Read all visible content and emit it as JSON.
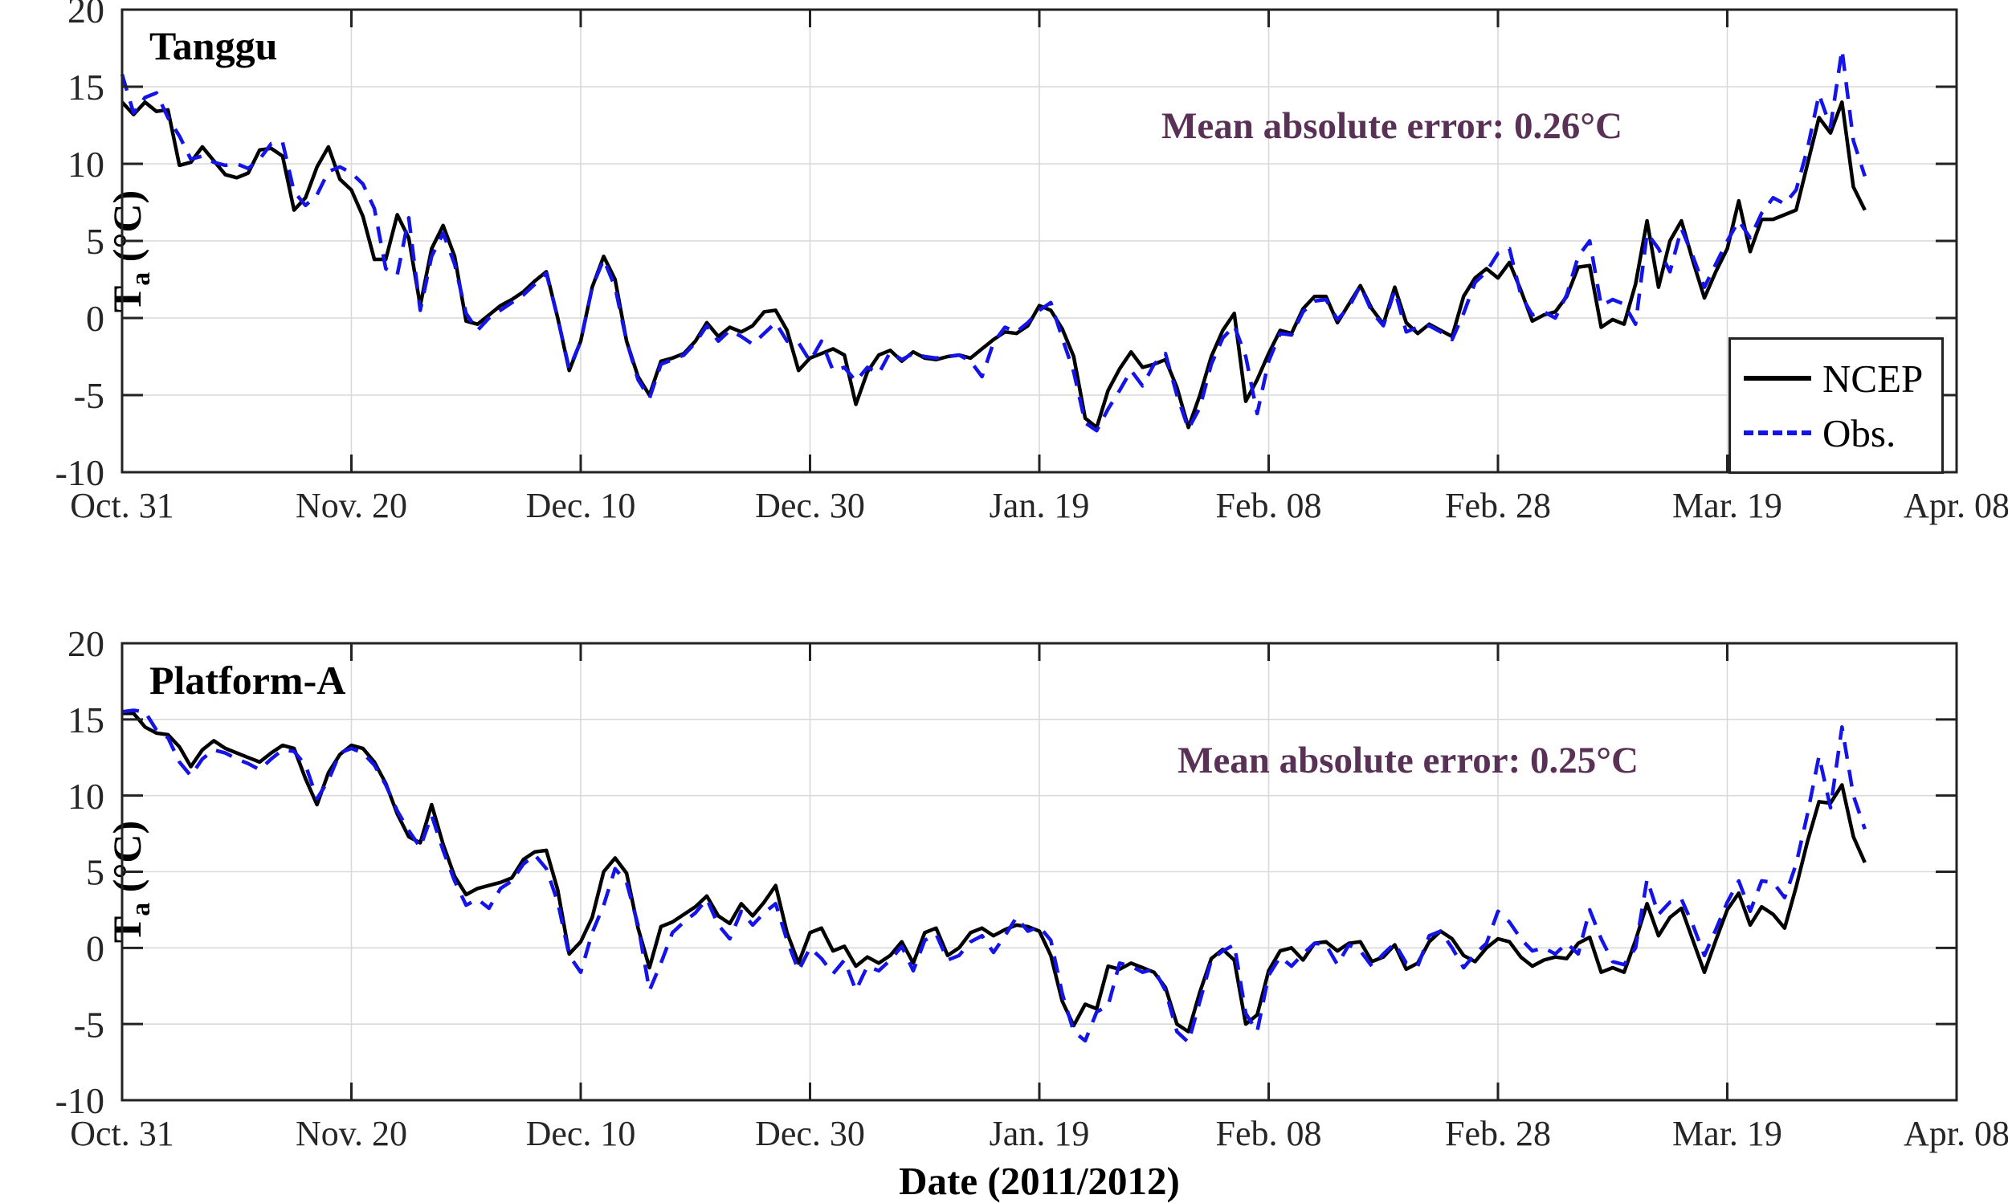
{
  "page": {
    "background": "#ffffff"
  },
  "xlabel": "Date (2011/2012)",
  "ylabel": {
    "main": "T",
    "sub": "a",
    "unit": "(°C)"
  },
  "colors": {
    "ncep": "#000000",
    "obs": "#1414e8",
    "annotation": "#5a3156",
    "grid": "#d9d9d9",
    "axis": "#222222",
    "tick_text": "#262626",
    "background": "#ffffff"
  },
  "legend": {
    "position": "bottom-right-of-top-panel",
    "items": [
      {
        "label": "NCEP",
        "style": "solid",
        "color": "#000000"
      },
      {
        "label": "Obs.",
        "style": "dashed",
        "color": "#1414e8"
      }
    ]
  },
  "chart_data": [
    {
      "type": "line",
      "title": "Tanggu",
      "annotation": "Mean absolute error: 0.26°C",
      "x_unit": "days since Oct. 31, 2011 (daily values)",
      "xlim": [
        0,
        160
      ],
      "ylim": [
        -10,
        20
      ],
      "yticks": [
        -10,
        -5,
        0,
        5,
        10,
        15,
        20
      ],
      "grid": true,
      "xticks": [
        {
          "day": 0,
          "label": "Oct. 31"
        },
        {
          "day": 20,
          "label": "Nov. 20"
        },
        {
          "day": 40,
          "label": "Dec. 10"
        },
        {
          "day": 60,
          "label": "Dec. 30"
        },
        {
          "day": 80,
          "label": "Jan. 19"
        },
        {
          "day": 100,
          "label": "Feb. 08"
        },
        {
          "day": 120,
          "label": "Feb. 28"
        },
        {
          "day": 140,
          "label": "Mar. 19"
        },
        {
          "day": 160,
          "label": "Apr. 08"
        }
      ],
      "series": [
        {
          "name": "NCEP",
          "color": "#000000",
          "line_style": "solid",
          "values": [
            14.0,
            13.2,
            14.0,
            13.4,
            13.5,
            9.9,
            10.1,
            11.1,
            10.2,
            9.3,
            9.1,
            9.4,
            10.9,
            11.0,
            10.5,
            7.0,
            7.8,
            9.8,
            11.1,
            9.0,
            8.3,
            6.6,
            3.8,
            3.8,
            6.7,
            5.2,
            0.8,
            4.5,
            6.0,
            4.0,
            -0.2,
            -0.4,
            0.2,
            0.8,
            1.2,
            1.7,
            2.4,
            3.0,
            0.0,
            -3.4,
            -1.5,
            2.0,
            4.0,
            2.5,
            -1.5,
            -3.8,
            -5.0,
            -2.8,
            -2.6,
            -2.3,
            -1.5,
            -0.3,
            -1.2,
            -0.6,
            -0.9,
            -0.5,
            0.4,
            0.5,
            -0.8,
            -3.4,
            -2.6,
            -2.3,
            -2.0,
            -2.4,
            -5.6,
            -3.5,
            -2.4,
            -2.1,
            -2.8,
            -2.2,
            -2.6,
            -2.7,
            -2.5,
            -2.4,
            -2.6,
            -2.0,
            -1.4,
            -0.9,
            -1.0,
            -0.5,
            0.8,
            0.5,
            -0.7,
            -2.5,
            -6.5,
            -7.1,
            -4.7,
            -3.3,
            -2.2,
            -3.2,
            -3.0,
            -2.7,
            -4.5,
            -7.1,
            -5.0,
            -2.5,
            -0.8,
            0.3,
            -5.4,
            -4.0,
            -2.3,
            -0.8,
            -1.0,
            0.6,
            1.4,
            1.4,
            -0.3,
            0.9,
            2.1,
            0.6,
            -0.4,
            2.0,
            -0.3,
            -1.0,
            -0.4,
            -0.8,
            -1.2,
            1.4,
            2.6,
            3.2,
            2.6,
            3.6,
            1.8,
            -0.2,
            0.2,
            0.4,
            1.4,
            3.3,
            3.4,
            -0.6,
            -0.1,
            -0.4,
            2.2,
            6.3,
            2.0,
            5.0,
            6.3,
            3.7,
            1.3,
            3.0,
            4.5,
            7.6,
            4.3,
            6.4,
            6.4,
            6.7,
            7.0,
            10.0,
            13.0,
            12.0,
            14.0,
            8.5,
            7.0
          ]
        },
        {
          "name": "Obs.",
          "color": "#1414e8",
          "line_style": "dashed",
          "values": [
            15.8,
            13.3,
            14.3,
            14.6,
            13.0,
            11.8,
            10.3,
            10.5,
            10.1,
            9.9,
            10.0,
            9.7,
            10.3,
            11.3,
            11.4,
            8.2,
            7.3,
            8.0,
            9.5,
            9.8,
            9.4,
            8.7,
            7.1,
            3.2,
            2.8,
            6.5,
            0.5,
            4.0,
            5.5,
            3.5,
            0.3,
            -0.8,
            0.0,
            0.5,
            1.0,
            1.5,
            2.2,
            2.9,
            0.0,
            -3.3,
            -1.5,
            2.0,
            3.8,
            2.0,
            -1.5,
            -4.0,
            -5.2,
            -3.0,
            -2.7,
            -2.4,
            -1.6,
            -0.5,
            -1.5,
            -0.8,
            -1.2,
            -1.7,
            -1.0,
            -0.3,
            -1.5,
            -1.6,
            -2.8,
            -1.5,
            -3.4,
            -3.2,
            -4.1,
            -3.2,
            -3.6,
            -2.2,
            -2.7,
            -2.3,
            -2.5,
            -2.6,
            -2.5,
            -2.4,
            -2.8,
            -3.8,
            -1.6,
            -0.6,
            -0.9,
            -0.3,
            0.5,
            1.0,
            -1.3,
            -3.5,
            -6.8,
            -7.3,
            -5.9,
            -4.7,
            -3.4,
            -4.4,
            -3.0,
            -2.3,
            -5.0,
            -7.2,
            -5.8,
            -3.0,
            -1.3,
            -0.5,
            -2.5,
            -6.2,
            -2.8,
            -1.0,
            -1.1,
            0.4,
            1.1,
            1.2,
            -0.1,
            0.7,
            2.1,
            0.4,
            -0.5,
            1.8,
            -0.9,
            -0.6,
            -0.5,
            -0.9,
            -1.4,
            0.3,
            2.3,
            3.0,
            4.2,
            4.5,
            1.5,
            0.2,
            0.4,
            0.0,
            1.5,
            4.0,
            5.0,
            0.8,
            1.2,
            0.9,
            -0.4,
            5.5,
            4.5,
            3.0,
            5.8,
            4.0,
            2.0,
            3.5,
            5.0,
            6.3,
            5.2,
            6.8,
            7.8,
            7.4,
            8.3,
            11.0,
            14.5,
            12.4,
            17.4,
            11.5,
            9.2
          ]
        }
      ]
    },
    {
      "type": "line",
      "title": "Platform-A",
      "annotation": "Mean absolute error: 0.25°C",
      "x_unit": "days since Oct. 31, 2011 (daily values)",
      "xlim": [
        0,
        160
      ],
      "ylim": [
        -10,
        20
      ],
      "yticks": [
        -10,
        -5,
        0,
        5,
        10,
        15,
        20
      ],
      "grid": true,
      "xticks": [
        {
          "day": 0,
          "label": "Oct. 31"
        },
        {
          "day": 20,
          "label": "Nov. 20"
        },
        {
          "day": 40,
          "label": "Dec. 10"
        },
        {
          "day": 60,
          "label": "Dec. 30"
        },
        {
          "day": 80,
          "label": "Jan. 19"
        },
        {
          "day": 100,
          "label": "Feb. 08"
        },
        {
          "day": 120,
          "label": "Feb. 28"
        },
        {
          "day": 140,
          "label": "Mar. 19"
        },
        {
          "day": 160,
          "label": "Apr. 08"
        }
      ],
      "series": [
        {
          "name": "NCEP",
          "color": "#000000",
          "line_style": "solid",
          "values": [
            15.4,
            15.4,
            14.5,
            14.1,
            14.0,
            13.2,
            11.9,
            13.0,
            13.6,
            13.1,
            12.8,
            12.5,
            12.2,
            12.8,
            13.3,
            13.1,
            11.1,
            9.4,
            11.5,
            12.7,
            13.3,
            13.1,
            12.2,
            10.8,
            8.8,
            7.3,
            6.9,
            9.4,
            6.8,
            4.7,
            3.5,
            3.9,
            4.1,
            4.3,
            4.6,
            5.8,
            6.3,
            6.4,
            3.8,
            -0.4,
            0.4,
            2.0,
            5.0,
            5.9,
            4.9,
            1.3,
            -1.3,
            1.4,
            1.7,
            2.2,
            2.7,
            3.4,
            2.1,
            1.6,
            2.9,
            2.1,
            3.0,
            4.1,
            1.0,
            -1.0,
            1.0,
            1.3,
            -0.2,
            0.1,
            -1.2,
            -0.6,
            -1.0,
            -0.5,
            0.4,
            -1.0,
            1.0,
            1.3,
            -0.5,
            0.0,
            1.0,
            1.3,
            0.8,
            1.2,
            1.5,
            1.4,
            1.1,
            -0.5,
            -3.5,
            -5.1,
            -3.7,
            -4.0,
            -1.2,
            -1.4,
            -1.0,
            -1.3,
            -1.6,
            -2.6,
            -5.0,
            -5.5,
            -2.9,
            -0.7,
            -0.1,
            -0.8,
            -5.0,
            -4.4,
            -1.5,
            -0.2,
            0.0,
            -0.8,
            0.3,
            0.4,
            -0.2,
            0.3,
            0.4,
            -0.9,
            -0.6,
            0.2,
            -1.4,
            -1.0,
            0.4,
            1.1,
            0.6,
            -0.5,
            -0.9,
            0.0,
            0.6,
            0.4,
            -0.6,
            -1.2,
            -0.8,
            -0.6,
            -0.7,
            0.3,
            0.7,
            -1.6,
            -1.3,
            -1.6,
            0.5,
            2.9,
            0.8,
            2.0,
            2.6,
            0.5,
            -1.6,
            0.5,
            2.5,
            3.6,
            1.5,
            2.7,
            2.2,
            1.3,
            4.0,
            7.0,
            9.6,
            9.5,
            10.7,
            7.3,
            5.6
          ]
        },
        {
          "name": "Obs.",
          "color": "#1414e8",
          "line_style": "dashed",
          "values": [
            15.5,
            15.6,
            15.5,
            14.3,
            13.8,
            12.2,
            11.3,
            12.4,
            13.0,
            12.8,
            12.4,
            12.1,
            11.7,
            12.4,
            13.0,
            12.9,
            12.0,
            9.8,
            11.0,
            12.8,
            13.1,
            12.8,
            12.0,
            10.7,
            9.0,
            7.7,
            6.6,
            8.7,
            6.4,
            4.4,
            2.8,
            3.2,
            2.6,
            3.9,
            4.4,
            5.5,
            6.1,
            5.2,
            3.0,
            -0.5,
            -1.6,
            1.0,
            2.8,
            5.2,
            4.3,
            1.5,
            -2.8,
            -1.0,
            1.0,
            1.7,
            2.3,
            3.2,
            1.5,
            0.6,
            2.4,
            1.5,
            2.3,
            2.9,
            0.5,
            -1.5,
            0.0,
            -0.7,
            -1.7,
            -0.8,
            -2.8,
            -1.2,
            -1.5,
            -0.8,
            0.1,
            -1.5,
            0.5,
            0.9,
            -0.8,
            -0.5,
            0.4,
            0.8,
            -0.3,
            0.8,
            2.0,
            1.1,
            1.4,
            0.5,
            -3.0,
            -5.5,
            -6.1,
            -4.2,
            -3.8,
            -1.0,
            -1.2,
            -1.6,
            -1.4,
            -2.8,
            -5.5,
            -6.2,
            -3.5,
            -0.8,
            -0.2,
            0.2,
            -4.3,
            -5.5,
            -1.8,
            -0.6,
            -1.2,
            -0.4,
            0.3,
            0.2,
            -1.1,
            0.2,
            -0.2,
            -1.2,
            -0.4,
            0.3,
            -1.0,
            -1.2,
            0.8,
            1.1,
            0.0,
            -1.3,
            -0.4,
            0.3,
            2.4,
            1.7,
            0.6,
            -0.2,
            0.0,
            -0.4,
            0.3,
            -0.4,
            2.5,
            0.6,
            -0.9,
            -1.1,
            0.0,
            4.5,
            2.2,
            3.0,
            3.2,
            1.5,
            -0.5,
            1.2,
            3.0,
            4.4,
            2.4,
            4.4,
            4.3,
            3.3,
            5.5,
            8.8,
            12.6,
            9.2,
            14.5,
            10.0,
            7.8
          ]
        }
      ]
    }
  ]
}
